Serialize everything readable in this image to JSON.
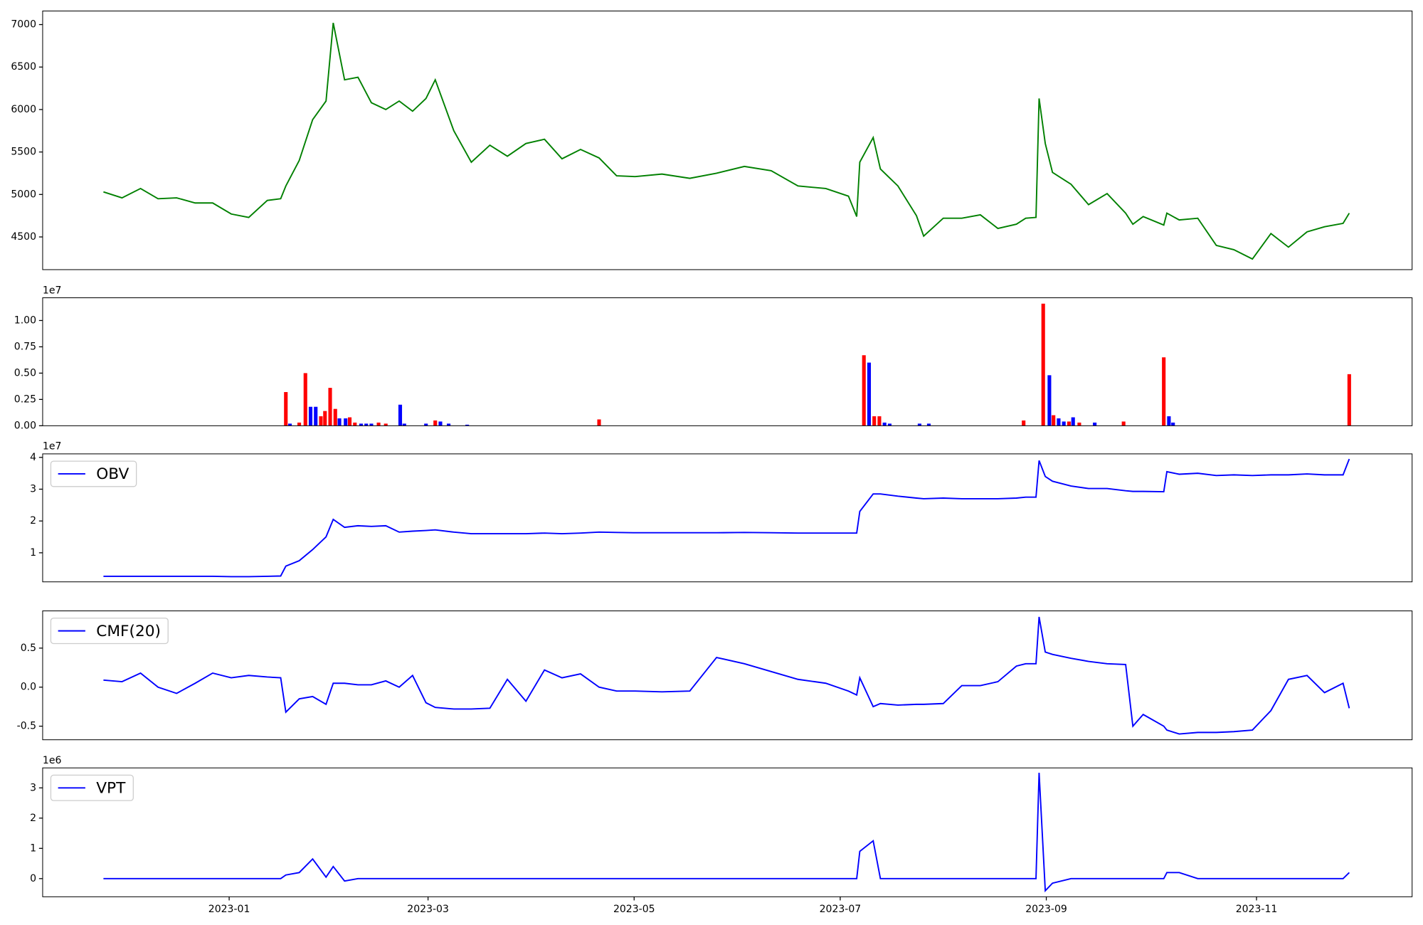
{
  "chart_data": [
    {
      "type": "line",
      "legend": "upper left",
      "xlim": [
        -1.81,
        11.48
      ],
      "ylim": [
        4115,
        7160
      ],
      "yticks": [
        4500,
        5000,
        5500,
        6000,
        6500,
        7000
      ],
      "x": [
        -1.22,
        -1.04,
        -0.86,
        -0.69,
        -0.51,
        -0.33,
        -0.16,
        0.02,
        0.19,
        0.37,
        0.5,
        0.55,
        0.68,
        0.81,
        0.94,
        1.01,
        1.12,
        1.25,
        1.38,
        1.52,
        1.65,
        1.78,
        1.91,
        2.0,
        2.18,
        2.35,
        2.53,
        2.7,
        2.88,
        3.06,
        3.23,
        3.41,
        3.59,
        3.76,
        3.94,
        4.2,
        4.47,
        4.73,
        5.0,
        5.26,
        5.52,
        5.79,
        6.01,
        6.09,
        6.12,
        6.25,
        6.32,
        6.49,
        6.67,
        6.74,
        6.93,
        7.11,
        7.29,
        7.46,
        7.64,
        7.73,
        7.83,
        7.86,
        7.92,
        7.99,
        8.17,
        8.34,
        8.52,
        8.7,
        8.77,
        8.87,
        9.07,
        9.1,
        9.22,
        9.4,
        9.58,
        9.75,
        9.93,
        10.11,
        10.28,
        10.46,
        10.63,
        10.81,
        10.87
      ],
      "series": [
        {
          "color": "green",
          "values": [
            5030,
            4960,
            5070,
            4950,
            4960,
            4900,
            4900,
            4770,
            4730,
            4930,
            4950,
            5100,
            5400,
            5880,
            6100,
            7020,
            6350,
            6380,
            6080,
            6000,
            6100,
            5980,
            6130,
            6350,
            5750,
            5380,
            5580,
            5450,
            5600,
            5650,
            5420,
            5530,
            5430,
            5220,
            5210,
            5240,
            5190,
            5250,
            5330,
            5280,
            5100,
            5070,
            4980,
            4740,
            5380,
            5670,
            5300,
            5100,
            4750,
            4510,
            4720,
            4720,
            4760,
            4600,
            4650,
            4720,
            4730,
            6130,
            5600,
            5260,
            5120,
            4880,
            5010,
            4780,
            4650,
            4740,
            4640,
            4780,
            4700,
            4720,
            4400,
            4350,
            4240,
            4540,
            4380,
            4560,
            4620,
            4660,
            4780
          ]
        }
      ]
    },
    {
      "type": "bar",
      "offset_text": "1e7",
      "xlim": [
        -1.81,
        11.48
      ],
      "ylim": [
        0,
        1.216
      ],
      "yticks": [
        {
          "value": 0,
          "label": "0.00"
        },
        {
          "value": 0.25,
          "label": "0.25"
        },
        {
          "value": 0.5,
          "label": "0.50"
        },
        {
          "value": 0.75,
          "label": "0.75"
        },
        {
          "value": 1,
          "label": "1.00"
        }
      ],
      "series": [
        {
          "color": "red",
          "x": [
            0.55,
            0.68,
            0.74,
            0.89,
            0.93,
            0.98,
            1.03,
            1.17,
            1.22,
            1.45,
            1.52,
            2.0,
            3.59,
            6.16,
            6.26,
            6.31,
            7.71,
            7.9,
            8.0,
            8.15,
            8.25,
            8.68,
            9.07,
            10.87
          ],
          "values": [
            0.32,
            0.03,
            0.5,
            0.09,
            0.14,
            0.36,
            0.16,
            0.08,
            0.03,
            0.03,
            0.02,
            0.05,
            0.06,
            0.67,
            0.09,
            0.09,
            0.05,
            1.16,
            0.1,
            0.04,
            0.03,
            0.04,
            0.65,
            0.49
          ]
        },
        {
          "color": "blue",
          "x": [
            0.59,
            0.79,
            0.84,
            1.07,
            1.13,
            1.28,
            1.33,
            1.38,
            1.66,
            1.7,
            1.91,
            2.05,
            2.13,
            2.31,
            6.21,
            6.36,
            6.41,
            6.7,
            6.79,
            7.96,
            8.05,
            8.1,
            8.19,
            8.4,
            9.12,
            9.16
          ],
          "values": [
            0.02,
            0.18,
            0.18,
            0.07,
            0.07,
            0.02,
            0.02,
            0.02,
            0.2,
            0.02,
            0.02,
            0.04,
            0.02,
            0.01,
            0.6,
            0.03,
            0.02,
            0.02,
            0.02,
            0.48,
            0.07,
            0.04,
            0.08,
            0.03,
            0.09,
            0.03
          ]
        }
      ]
    },
    {
      "type": "line",
      "legend": "upper left",
      "offset_text": "1e7",
      "xlim": [
        -1.81,
        11.48
      ],
      "ylim": [
        0.086,
        4.11
      ],
      "yticks": [
        1,
        2,
        3,
        4
      ],
      "x": [
        -1.22,
        -1.04,
        -0.86,
        -0.69,
        -0.51,
        -0.33,
        -0.16,
        0.02,
        0.19,
        0.37,
        0.5,
        0.55,
        0.68,
        0.81,
        0.94,
        1.01,
        1.12,
        1.25,
        1.38,
        1.52,
        1.65,
        1.78,
        1.91,
        2.0,
        2.18,
        2.35,
        2.53,
        2.7,
        2.88,
        3.06,
        3.23,
        3.41,
        3.59,
        3.76,
        3.94,
        4.2,
        4.47,
        4.73,
        5.0,
        5.26,
        5.52,
        5.79,
        6.01,
        6.09,
        6.12,
        6.25,
        6.32,
        6.49,
        6.67,
        6.74,
        6.93,
        7.11,
        7.29,
        7.46,
        7.64,
        7.73,
        7.83,
        7.86,
        7.92,
        7.99,
        8.17,
        8.34,
        8.52,
        8.7,
        8.77,
        8.87,
        9.07,
        9.1,
        9.22,
        9.4,
        9.58,
        9.75,
        9.93,
        10.11,
        10.28,
        10.46,
        10.63,
        10.81,
        10.87
      ],
      "series": [
        {
          "name": "OBV",
          "color": "blue",
          "values": [
            0.26,
            0.26,
            0.26,
            0.26,
            0.26,
            0.26,
            0.26,
            0.25,
            0.25,
            0.26,
            0.27,
            0.58,
            0.75,
            1.1,
            1.5,
            2.05,
            1.8,
            1.85,
            1.83,
            1.85,
            1.65,
            1.68,
            1.7,
            1.72,
            1.65,
            1.6,
            1.6,
            1.6,
            1.6,
            1.62,
            1.6,
            1.62,
            1.65,
            1.64,
            1.63,
            1.63,
            1.63,
            1.63,
            1.64,
            1.63,
            1.62,
            1.62,
            1.62,
            1.62,
            2.3,
            2.85,
            2.85,
            2.78,
            2.72,
            2.7,
            2.72,
            2.7,
            2.7,
            2.7,
            2.72,
            2.75,
            2.75,
            3.9,
            3.4,
            3.25,
            3.1,
            3.02,
            3.02,
            2.95,
            2.93,
            2.93,
            2.92,
            3.55,
            3.47,
            3.5,
            3.43,
            3.45,
            3.43,
            3.45,
            3.45,
            3.48,
            3.45,
            3.45,
            3.95
          ]
        }
      ]
    },
    {
      "type": "line",
      "legend": "upper left",
      "xlim": [
        -1.81,
        11.48
      ],
      "ylim": [
        -0.674,
        0.977
      ],
      "yticks": [
        -0.5,
        {
          "value": 0,
          "label": "0.0"
        },
        0.5
      ],
      "x": [
        -1.22,
        -1.04,
        -0.86,
        -0.69,
        -0.51,
        -0.33,
        -0.16,
        0.02,
        0.19,
        0.37,
        0.5,
        0.55,
        0.68,
        0.81,
        0.94,
        1.01,
        1.12,
        1.25,
        1.38,
        1.52,
        1.65,
        1.78,
        1.91,
        2.0,
        2.18,
        2.35,
        2.53,
        2.7,
        2.88,
        3.06,
        3.23,
        3.41,
        3.59,
        3.76,
        3.94,
        4.2,
        4.47,
        4.73,
        5.0,
        5.26,
        5.52,
        5.79,
        6.01,
        6.09,
        6.12,
        6.25,
        6.32,
        6.49,
        6.67,
        6.74,
        6.93,
        7.11,
        7.29,
        7.46,
        7.64,
        7.73,
        7.83,
        7.86,
        7.92,
        7.99,
        8.17,
        8.34,
        8.52,
        8.7,
        8.77,
        8.87,
        9.07,
        9.1,
        9.22,
        9.4,
        9.58,
        9.75,
        9.93,
        10.11,
        10.28,
        10.46,
        10.63,
        10.81,
        10.87
      ],
      "series": [
        {
          "name": "CMF(20)",
          "color": "blue",
          "values": [
            0.09,
            0.07,
            0.18,
            0.0,
            -0.08,
            0.05,
            0.18,
            0.12,
            0.15,
            0.13,
            0.12,
            -0.32,
            -0.15,
            -0.12,
            -0.22,
            0.05,
            0.05,
            0.03,
            0.03,
            0.08,
            0.0,
            0.15,
            -0.2,
            -0.26,
            -0.28,
            -0.28,
            -0.27,
            0.1,
            -0.18,
            0.22,
            0.12,
            0.17,
            0.0,
            -0.05,
            -0.05,
            -0.06,
            -0.05,
            0.38,
            0.3,
            0.2,
            0.1,
            0.05,
            -0.05,
            -0.1,
            0.12,
            -0.25,
            -0.21,
            -0.23,
            -0.22,
            -0.22,
            -0.21,
            0.02,
            0.02,
            0.07,
            0.27,
            0.3,
            0.3,
            0.9,
            0.45,
            0.42,
            0.37,
            0.33,
            0.3,
            0.29,
            -0.5,
            -0.35,
            -0.5,
            -0.55,
            -0.6,
            -0.58,
            -0.58,
            -0.57,
            -0.55,
            -0.3,
            0.1,
            0.15,
            -0.07,
            0.05,
            -0.27
          ]
        }
      ]
    },
    {
      "type": "line",
      "legend": "upper left",
      "offset_text": "1e6",
      "xlim": [
        -1.81,
        11.48
      ],
      "ylim": [
        -0.6,
        3.66
      ],
      "yticks": [
        0,
        1,
        2,
        3
      ],
      "xticks": [
        {
          "value": 0,
          "label": "2023-01"
        },
        {
          "value": 1.93,
          "label": "2023-03"
        },
        {
          "value": 3.93,
          "label": "2023-05"
        },
        {
          "value": 5.93,
          "label": "2023-07"
        },
        {
          "value": 7.93,
          "label": "2023-09"
        },
        {
          "value": 9.97,
          "label": "2023-11"
        }
      ],
      "x": [
        -1.22,
        -1.04,
        -0.86,
        -0.69,
        -0.51,
        -0.33,
        -0.16,
        0.02,
        0.19,
        0.37,
        0.5,
        0.55,
        0.68,
        0.81,
        0.94,
        1.01,
        1.12,
        1.25,
        1.38,
        1.52,
        1.65,
        1.78,
        1.91,
        2.0,
        2.18,
        2.35,
        2.53,
        2.7,
        2.88,
        3.06,
        3.23,
        3.41,
        3.59,
        3.76,
        3.94,
        4.2,
        4.47,
        4.73,
        5.0,
        5.26,
        5.52,
        5.79,
        6.01,
        6.09,
        6.12,
        6.25,
        6.32,
        6.49,
        6.67,
        6.74,
        6.93,
        7.11,
        7.29,
        7.46,
        7.64,
        7.73,
        7.83,
        7.86,
        7.92,
        7.99,
        8.17,
        8.34,
        8.52,
        8.7,
        8.77,
        8.87,
        9.07,
        9.1,
        9.22,
        9.4,
        9.58,
        9.75,
        9.93,
        10.11,
        10.28,
        10.46,
        10.63,
        10.81,
        10.87
      ],
      "series": [
        {
          "name": "VPT",
          "color": "blue",
          "values": [
            0,
            0,
            0,
            0,
            0,
            0,
            0,
            0,
            0,
            0,
            0,
            0.12,
            0.2,
            0.65,
            0.05,
            0.4,
            -0.08,
            0,
            0,
            0,
            0,
            0,
            0,
            0,
            0,
            0,
            0,
            0,
            0,
            0,
            0,
            0,
            0,
            0,
            0,
            0,
            0,
            0,
            0,
            0,
            0,
            0,
            0,
            0,
            0.9,
            1.25,
            0,
            0,
            0,
            0,
            0,
            0,
            0,
            0,
            0,
            0,
            0,
            3.5,
            -0.4,
            -0.15,
            0,
            0,
            0,
            0,
            0,
            0,
            0,
            0.2,
            0.2,
            0,
            0,
            0,
            0,
            0,
            0,
            0,
            0,
            0,
            0.2
          ]
        }
      ]
    }
  ]
}
